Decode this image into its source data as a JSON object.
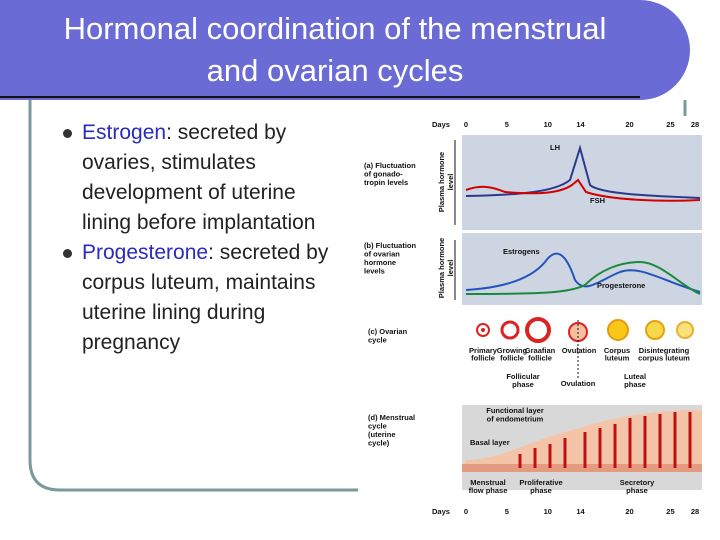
{
  "header": {
    "title": "Hormonal coordination of the menstrual and ovarian cycles"
  },
  "bullets": [
    {
      "term": "Estrogen",
      "text": ": secreted by ovaries, stimulates development of uterine lining before implantation"
    },
    {
      "term": "Progesterone",
      "text": ": secreted by corpus luteum, maintains uterine lining during pregnancy"
    }
  ],
  "figure": {
    "days_label": "Days",
    "days": [
      0,
      5,
      10,
      14,
      20,
      25,
      28
    ],
    "axis_label": [
      "Plasma hormone",
      "level"
    ],
    "panels": [
      {
        "label": [
          "(a) Fluctuation",
          "of gonado-",
          "tropin levels"
        ],
        "curves": [
          "LH",
          "FSH"
        ]
      },
      {
        "label": [
          "(b) Fluctuation",
          "of ovarian",
          "hormone",
          "levels"
        ],
        "curves": [
          "Estrogens",
          "Progesterone"
        ]
      },
      {
        "label": [
          "(c) Ovarian",
          "cycle"
        ],
        "stages": [
          [
            "Primary",
            "follicle"
          ],
          [
            "Growing",
            "follicle"
          ],
          [
            "Graafian",
            "follicle"
          ],
          [
            "Ovulation"
          ],
          [
            "Corpus",
            "luteum"
          ],
          [
            "Disintegrating",
            "corpus luteum"
          ]
        ],
        "phases": [
          [
            "Follicular",
            "phase"
          ],
          [
            "Ovulation"
          ],
          [
            "Luteal",
            "phase"
          ]
        ]
      },
      {
        "label": [
          "(d) Menstrual",
          "cycle",
          "(uterine",
          "cycle)"
        ],
        "layers": [
          [
            "Functional layer",
            "of endometrium"
          ],
          [
            "Basal layer"
          ]
        ],
        "phases": [
          [
            "Menstrual",
            "flow phase"
          ],
          [
            "Proliferative",
            "phase"
          ],
          [
            "Secretory",
            "phase"
          ]
        ]
      }
    ]
  }
}
